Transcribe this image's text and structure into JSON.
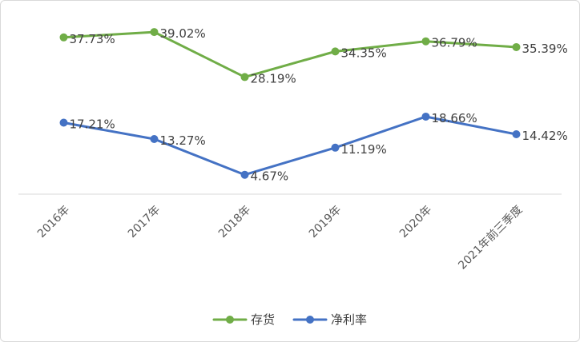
{
  "chart_data": {
    "type": "line",
    "categories": [
      "2016年",
      "2017年",
      "2018年",
      "2019年",
      "2020年",
      "2021年前三季度"
    ],
    "series": [
      {
        "name": "存货",
        "color": "#70ad47",
        "values": [
          37.73,
          39.02,
          28.19,
          34.35,
          36.79,
          35.39
        ],
        "labels": [
          "37.73%",
          "39.02%",
          "28.19%",
          "34.35%",
          "36.79%",
          "35.39%"
        ]
      },
      {
        "name": "净利率",
        "color": "#4472c4",
        "values": [
          17.21,
          13.27,
          4.67,
          11.19,
          18.66,
          14.42
        ],
        "labels": [
          "17.21%",
          "13.27%",
          "4.67%",
          "11.19%",
          "18.66%",
          "14.42%"
        ]
      }
    ],
    "title": "",
    "xlabel": "",
    "ylabel": "",
    "ylim": [
      0,
      45
    ],
    "grid": false,
    "axis_color": "#d9d9d9",
    "legend": "bottom"
  }
}
